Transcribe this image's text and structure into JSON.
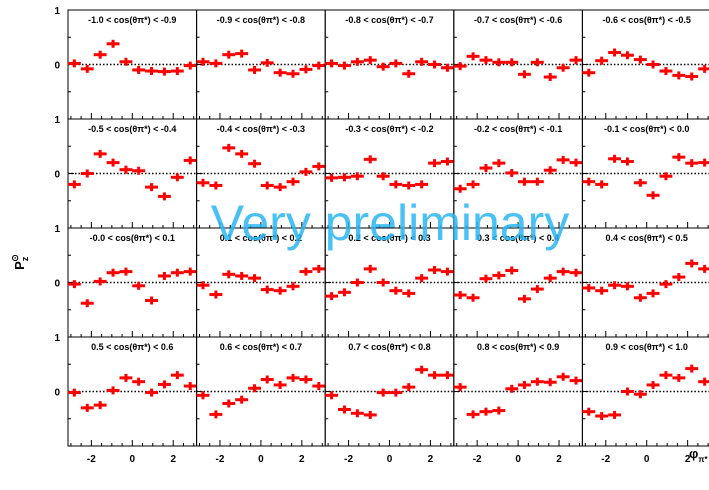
{
  "chart_data": {
    "type": "scatter",
    "ylabel": "P",
    "ylabel_sub": "z",
    "ylabel_sup": "⊙",
    "xlabel": "φ",
    "xlabel_sub": "π*",
    "watermark": "Very preliminary",
    "marker_color": "#ff0000",
    "xlim": [
      -3.1416,
      3.1416
    ],
    "ylim": [
      -1,
      1
    ],
    "xticks": [
      -2,
      0,
      2
    ],
    "yticks": [
      1,
      0
    ],
    "x_centers": [
      -2.83,
      -2.2,
      -1.57,
      -0.94,
      -0.31,
      0.31,
      0.94,
      1.57,
      2.2,
      2.83
    ],
    "panels": [
      {
        "label": "-1.0 < cos(θπ*) < -0.9",
        "y": [
          0.02,
          -0.08,
          0.18,
          0.38,
          0.05,
          -0.1,
          -0.12,
          -0.13,
          -0.12,
          -0.02
        ]
      },
      {
        "label": "-0.9 < cos(θπ*) < -0.8",
        "y": [
          0.05,
          0.02,
          0.18,
          0.2,
          -0.1,
          0.03,
          -0.15,
          -0.17,
          -0.09,
          -0.02
        ]
      },
      {
        "label": "-0.8 < cos(θπ*) < -0.7",
        "y": [
          0.02,
          -0.02,
          0.05,
          0.08,
          -0.04,
          0.02,
          -0.17,
          0.05,
          0.0,
          -0.06
        ]
      },
      {
        "label": "-0.7 < cos(θπ*) < -0.6",
        "y": [
          -0.03,
          0.15,
          0.08,
          0.04,
          0.04,
          -0.18,
          0.04,
          -0.23,
          -0.06,
          0.08
        ]
      },
      {
        "label": "-0.6 < cos(θπ*) < -0.5",
        "y": [
          -0.15,
          0.07,
          0.22,
          0.17,
          0.09,
          0.0,
          -0.12,
          -0.2,
          -0.22,
          -0.08
        ]
      },
      {
        "label": "-0.5 < cos(θπ*) < -0.4",
        "y": [
          -0.2,
          0.0,
          0.36,
          0.2,
          0.07,
          0.05,
          -0.25,
          -0.42,
          -0.07,
          0.24
        ]
      },
      {
        "label": "-0.4 < cos(θπ*) < -0.3",
        "y": [
          -0.17,
          -0.22,
          0.47,
          0.36,
          0.18,
          -0.22,
          -0.25,
          -0.15,
          0.03,
          0.13
        ]
      },
      {
        "label": "-0.3 < cos(θπ*) < -0.2",
        "y": [
          -0.08,
          -0.07,
          -0.05,
          0.26,
          -0.05,
          -0.2,
          -0.22,
          -0.2,
          0.19,
          0.22
        ]
      },
      {
        "label": "-0.2 < cos(θπ*) < -0.1",
        "y": [
          -0.28,
          -0.2,
          0.1,
          0.19,
          0.01,
          -0.15,
          -0.15,
          0.06,
          0.25,
          0.2
        ]
      },
      {
        "label": "-0.1 < cos(θπ*) < 0.0",
        "y": [
          -0.15,
          -0.2,
          0.27,
          0.22,
          -0.17,
          -0.4,
          -0.05,
          0.3,
          0.19,
          0.2
        ]
      },
      {
        "label": "-0.0 < cos(θπ*) < 0.1",
        "y": [
          -0.03,
          -0.38,
          0.02,
          0.18,
          0.2,
          -0.06,
          -0.33,
          0.12,
          0.18,
          0.2
        ]
      },
      {
        "label": "0.1 < cos(θπ*) < 0.2",
        "y": [
          -0.05,
          -0.22,
          0.15,
          0.12,
          0.08,
          -0.13,
          -0.15,
          -0.07,
          0.2,
          0.25
        ]
      },
      {
        "label": "0.2 < cos(θπ*) < 0.3",
        "y": [
          -0.25,
          -0.18,
          0.0,
          0.25,
          0.0,
          -0.15,
          -0.2,
          0.08,
          0.23,
          0.2
        ]
      },
      {
        "label": "0.3 < cos(θπ*) < 0.4",
        "y": [
          -0.23,
          -0.28,
          0.07,
          0.13,
          0.22,
          -0.3,
          -0.12,
          0.08,
          0.2,
          0.18
        ]
      },
      {
        "label": "0.4 < cos(θπ*) < 0.5",
        "y": [
          -0.1,
          -0.15,
          -0.05,
          -0.07,
          -0.28,
          -0.2,
          -0.03,
          0.1,
          0.35,
          0.25
        ]
      },
      {
        "label": "0.5 < cos(θπ*) < 0.6",
        "y": [
          -0.02,
          -0.3,
          -0.25,
          0.02,
          0.25,
          0.18,
          -0.02,
          0.13,
          0.3,
          0.1
        ]
      },
      {
        "label": "0.6 < cos(θπ*) < 0.7",
        "y": [
          -0.07,
          -0.42,
          -0.22,
          -0.15,
          0.06,
          0.22,
          0.12,
          0.25,
          0.22,
          0.1
        ]
      },
      {
        "label": "0.7 < cos(θπ*) < 0.8",
        "y": [
          -0.07,
          -0.33,
          -0.4,
          -0.43,
          -0.02,
          -0.02,
          0.08,
          0.4,
          0.3,
          0.3
        ]
      },
      {
        "label": "0.8 < cos(θπ*) < 0.9",
        "y": [
          0.08,
          -0.42,
          -0.37,
          -0.35,
          0.05,
          0.12,
          0.18,
          0.17,
          0.27,
          0.2
        ]
      },
      {
        "label": "0.9 < cos(θπ*) < 1.0",
        "y": [
          -0.37,
          -0.45,
          -0.43,
          0.0,
          -0.05,
          0.12,
          0.3,
          0.25,
          0.42,
          0.18
        ]
      }
    ]
  }
}
